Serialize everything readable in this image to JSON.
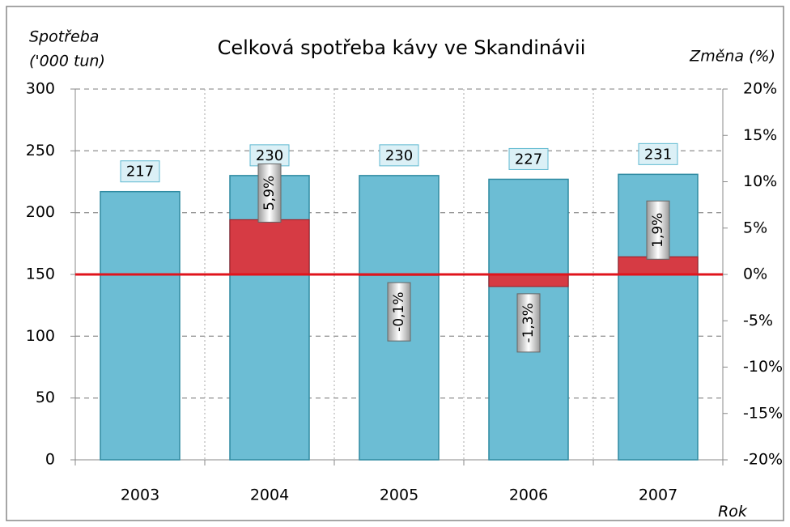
{
  "chart_data": {
    "type": "bar",
    "title": "Celková spotřeba kávy ve Skandinávii",
    "ylabel": [
      "Spotřeba",
      "('000 tun)"
    ],
    "y2label": "Změna (%)",
    "xlabel": "Rok",
    "categories": [
      "2003",
      "2004",
      "2005",
      "2006",
      "2007"
    ],
    "series": [
      {
        "color": "#6cbdd4",
        "values": [
          217,
          230,
          230,
          227,
          231
        ]
      },
      {
        "color": "#d63b44",
        "axis": "y2",
        "values": [
          null,
          5.9,
          -0.1,
          -1.3,
          1.9
        ],
        "value_labels": [
          null,
          "5,9%",
          "-0,1%",
          "-1,3%",
          "1,9%"
        ]
      }
    ],
    "ylim": [
      0,
      300
    ],
    "yticks": [
      0,
      50,
      100,
      150,
      200,
      250,
      300
    ],
    "y2lim": [
      -20,
      20
    ],
    "y2ticks": [
      {
        "value": -20,
        "label": "-20%"
      },
      {
        "value": -15,
        "label": "-15%"
      },
      {
        "value": -10,
        "label": "-10%"
      },
      {
        "value": -5,
        "label": "-5%"
      },
      {
        "value": 0,
        "label": "0%"
      },
      {
        "value": 5,
        "label": "5%"
      },
      {
        "value": 10,
        "label": "10%"
      },
      {
        "value": 15,
        "label": "15%"
      },
      {
        "value": 20,
        "label": "20%"
      }
    ],
    "grid": true
  }
}
